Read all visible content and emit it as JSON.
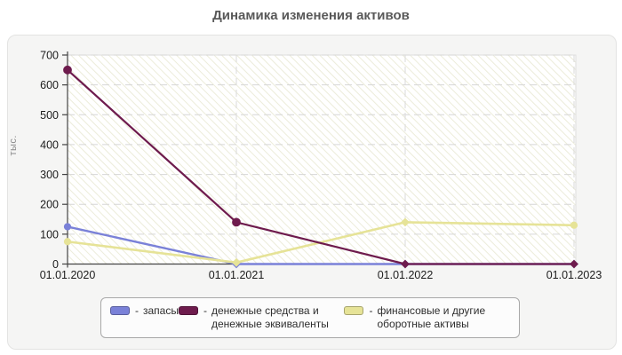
{
  "title": "Динамика изменения активов",
  "ylabel_text": "тыс.",
  "legend": {
    "prefix": "-"
  },
  "chart_data": {
    "type": "line",
    "title": "Динамика изменения активов",
    "xlabel": "",
    "ylabel": "тыс.",
    "categories": [
      "01.01.2020",
      "01.01.2021",
      "01.01.2022",
      "01.01.2023"
    ],
    "ylim": [
      0,
      700
    ],
    "yticks": [
      0,
      100,
      200,
      300,
      400,
      500,
      600,
      700
    ],
    "grid": true,
    "legend_position": "bottom",
    "series": [
      {
        "id": "inventory",
        "label": "запасы",
        "color": "#7a81d8",
        "values": [
          125,
          0,
          0,
          0
        ]
      },
      {
        "id": "cash",
        "label": "денежные средства и денежные эквиваленты",
        "color": "#6e1b4d",
        "values": [
          650,
          140,
          0,
          0
        ]
      },
      {
        "id": "financial-assets",
        "label": "финансовые и другие оборотные активы",
        "color": "#e6e397",
        "values": [
          75,
          5,
          140,
          130
        ]
      }
    ]
  }
}
